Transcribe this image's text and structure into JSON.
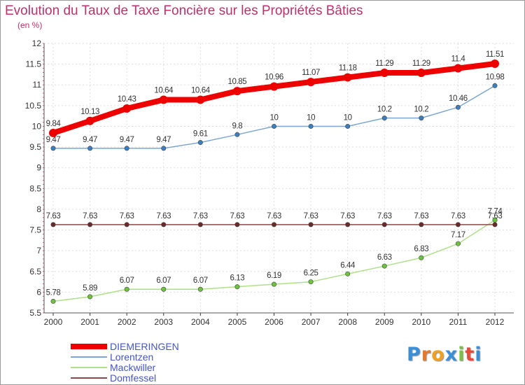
{
  "title": "Evolution du Taux de Taxe Foncière sur les Propriétés Bâties",
  "unit_label": "(en %)",
  "brand": {
    "name": "Proxiti",
    "letter_colors": [
      "#3a8fd6",
      "#e8792b",
      "#f0a020",
      "#3a8fd6",
      "#7ac143",
      "#e84a3a",
      "#3a8fd6"
    ]
  },
  "chart_data": {
    "type": "line",
    "title": "Evolution du Taux de Taxe Foncière sur les Propriétés Bâties",
    "ylabel": "(en %)",
    "xlabel": "",
    "ylim": [
      5.5,
      12
    ],
    "yticks": [
      5.5,
      6,
      6.5,
      7,
      7.5,
      8,
      8.5,
      9,
      9.5,
      10,
      10.5,
      11,
      11.5,
      12
    ],
    "ytick_labels": [
      "5.5",
      "6",
      "6.5",
      "7",
      "7.5",
      "8",
      "8.5",
      "9",
      "9.5",
      "10",
      "10.5",
      "11",
      "11.5",
      "12"
    ],
    "x": [
      "2000",
      "2001",
      "2002",
      "2003",
      "2004",
      "2005",
      "2006",
      "2007",
      "2008",
      "2009",
      "2010",
      "2011",
      "2012"
    ],
    "grid": true,
    "legend_position": "bottom-left",
    "series": [
      {
        "name": "DIEMERINGEN",
        "color": "#ee0000",
        "emphasis": true,
        "values": [
          9.84,
          10.13,
          10.43,
          10.64,
          10.64,
          10.85,
          10.96,
          11.07,
          11.18,
          11.29,
          11.29,
          11.4,
          11.51
        ],
        "labels": [
          "9.84",
          "10.13",
          "10.43",
          "10.64",
          "10.64",
          "10.85",
          "10.96",
          "11.07",
          "11.18",
          "11.29",
          "11.29",
          "11.4",
          "11.51"
        ]
      },
      {
        "name": "Lorentzen",
        "color": "#7aa6d0",
        "marker_color": "#3a7fc0",
        "values": [
          9.47,
          9.47,
          9.47,
          9.47,
          9.61,
          9.8,
          10,
          10,
          10,
          10.2,
          10.2,
          10.46,
          10.98
        ],
        "labels": [
          "9.47",
          "9.47",
          "9.47",
          "9.47",
          "9.61",
          "9.8",
          "10",
          "10",
          "10",
          "10.2",
          "10.2",
          "10.46",
          "10.98"
        ]
      },
      {
        "name": "Mackwiller",
        "color": "#aee08a",
        "marker_color": "#6cc33c",
        "values": [
          5.78,
          5.89,
          6.07,
          6.07,
          6.07,
          6.13,
          6.19,
          6.25,
          6.44,
          6.63,
          6.83,
          7.17,
          7.74
        ],
        "labels": [
          "5.78",
          "5.89",
          "6.07",
          "6.07",
          "6.07",
          "6.13",
          "6.19",
          "6.25",
          "6.44",
          "6.63",
          "6.83",
          "7.17",
          "7.74"
        ]
      },
      {
        "name": "Domfessel",
        "color": "#8b4a4a",
        "marker_color": "#6a2a2a",
        "values": [
          7.63,
          7.63,
          7.63,
          7.63,
          7.63,
          7.63,
          7.63,
          7.63,
          7.63,
          7.63,
          7.63,
          7.63,
          7.63
        ],
        "labels": [
          "7.63",
          "7.63",
          "7.63",
          "7.63",
          "7.63",
          "7.63",
          "7.63",
          "7.63",
          "7.63",
          "7.63",
          "7.63",
          "7.63",
          "7.63"
        ]
      }
    ]
  }
}
